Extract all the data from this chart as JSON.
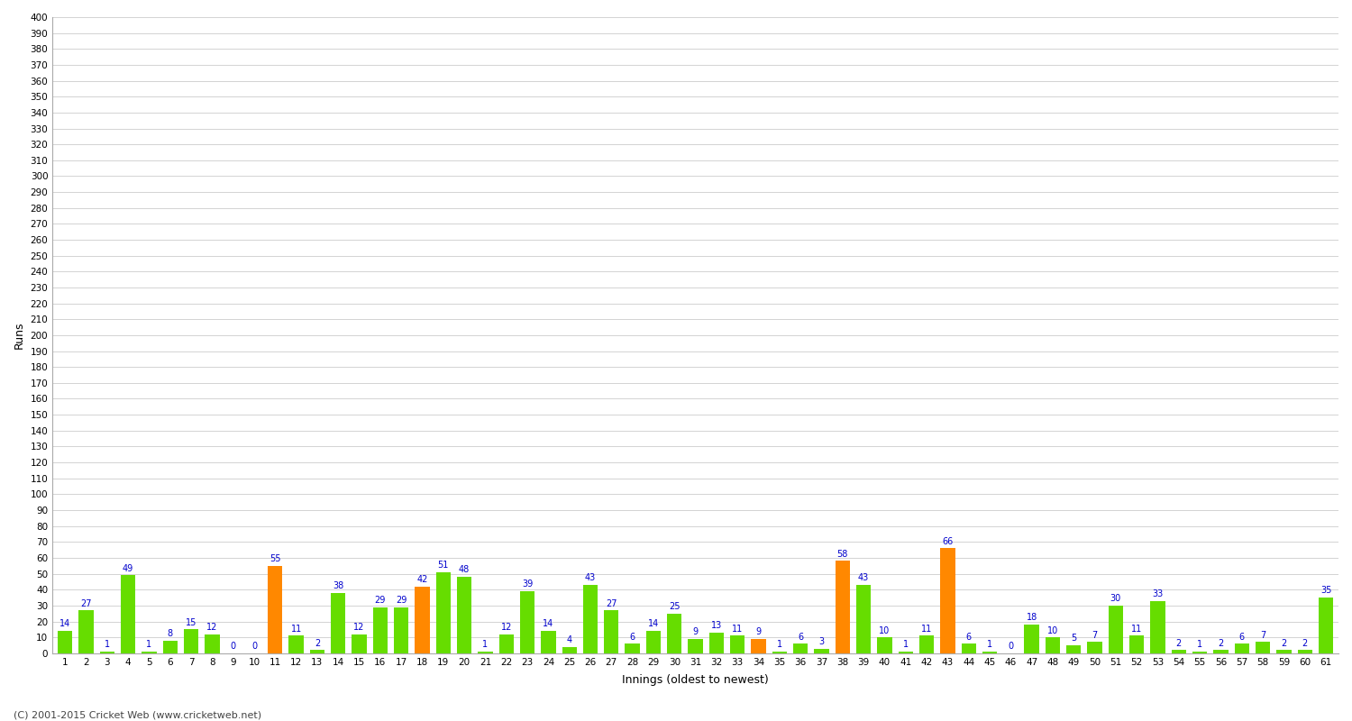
{
  "xlabel": "Innings (oldest to newest)",
  "ylabel": "Runs",
  "background_color": "#ffffff",
  "plot_bg_color": "#ffffff",
  "grid_color": "#cccccc",
  "bar_color_green": "#66dd00",
  "bar_color_orange": "#ff8800",
  "label_color": "#0000cc",
  "values": [
    14,
    27,
    1,
    49,
    1,
    8,
    15,
    12,
    0,
    0,
    55,
    11,
    2,
    38,
    12,
    29,
    29,
    42,
    51,
    48,
    1,
    12,
    39,
    14,
    4,
    43,
    27,
    6,
    14,
    25,
    9,
    13,
    11,
    9,
    1,
    6,
    3,
    58,
    43,
    10,
    1,
    11,
    66,
    6,
    1,
    0,
    18,
    10,
    5,
    7,
    30,
    11,
    33,
    2,
    1,
    2,
    6,
    7,
    2,
    2,
    35
  ],
  "orange_innings_1indexed": [
    11,
    18,
    34,
    38,
    43
  ],
  "footer": "(C) 2001-2015 Cricket Web (www.cricketweb.net)",
  "ylim_max": 400,
  "ytick_step": 10
}
